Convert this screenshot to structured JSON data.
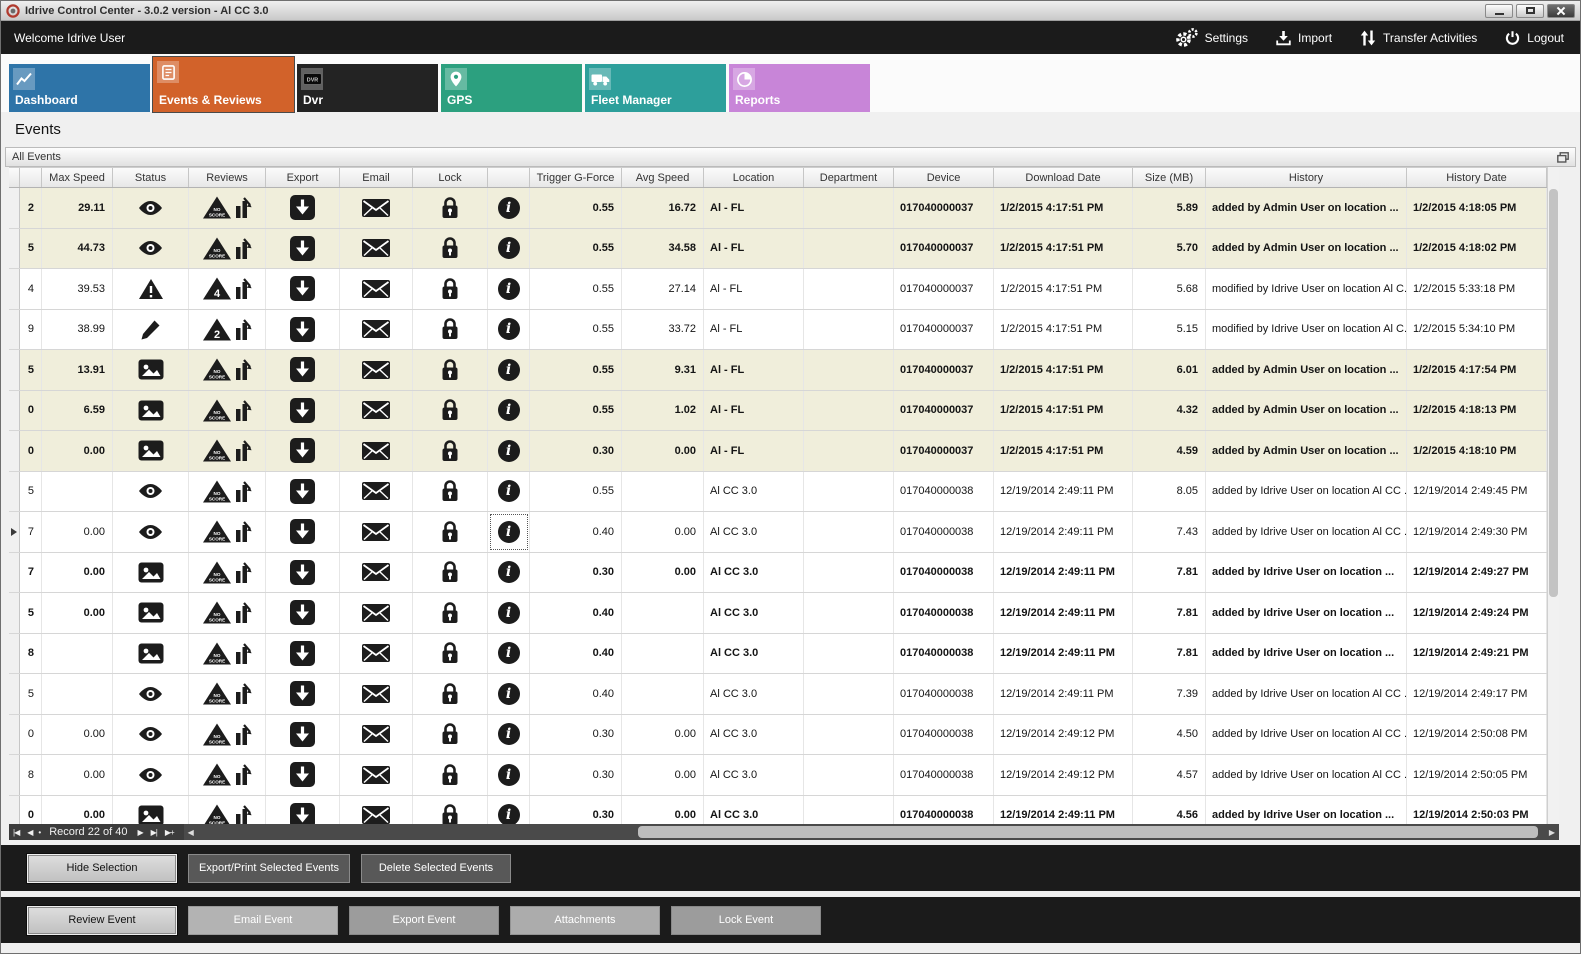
{
  "window": {
    "title": "Idrive Control Center - 3.0.2 version - Al CC 3.0"
  },
  "menubar": {
    "welcome": "Welcome Idrive User",
    "items": [
      {
        "label": "Settings",
        "icon": "gear"
      },
      {
        "label": "Import",
        "icon": "import"
      },
      {
        "label": "Transfer Activities",
        "icon": "transfer"
      },
      {
        "label": "Logout",
        "icon": "power"
      }
    ]
  },
  "tabs": [
    {
      "label": "Dashboard",
      "icon": "chart-line",
      "color": "#2e74a8",
      "selected": false
    },
    {
      "label": "Events & Reviews",
      "icon": "events",
      "color": "#d2622a",
      "selected": true
    },
    {
      "label": "Dvr",
      "icon": "dvr",
      "color": "#232323",
      "selected": false
    },
    {
      "label": "GPS",
      "icon": "pin",
      "color": "#2ca07f",
      "selected": false
    },
    {
      "label": "Fleet Manager",
      "icon": "truck",
      "color": "#2d9f9b",
      "selected": false
    },
    {
      "label": "Reports",
      "icon": "pie",
      "color": "#c885d8",
      "selected": false
    }
  ],
  "page_title": "Events",
  "panel_title": "All Events",
  "colors": {
    "unread_row_bg": "#f0eedb",
    "dark_bar": "#1b1b1b"
  },
  "table": {
    "columns": [
      "",
      "",
      "Max Speed",
      "Status",
      "Reviews",
      "Export",
      "Email",
      "Lock",
      "",
      "Trigger G-Force",
      "Avg Speed",
      "Location",
      "Department",
      "Device",
      "Download Date",
      "Size (MB)",
      "History",
      "History Date"
    ],
    "rows": [
      {
        "partial": "2",
        "max_speed": "29.11",
        "status": "eye",
        "score": "NO SCORE",
        "trigger_g": "0.55",
        "avg_speed": "16.72",
        "location": "Al - FL",
        "department": "",
        "device": "017040000037",
        "download_date": "1/2/2015 4:17:51 PM",
        "size_mb": "5.89",
        "history": "added by Admin User on location ...",
        "history_date": "1/2/2015 4:18:05 PM",
        "bold": true,
        "beige": true,
        "selected": false
      },
      {
        "partial": "5",
        "max_speed": "44.73",
        "status": "eye",
        "score": "NO SCORE",
        "trigger_g": "0.55",
        "avg_speed": "34.58",
        "location": "Al - FL",
        "department": "",
        "device": "017040000037",
        "download_date": "1/2/2015 4:17:51 PM",
        "size_mb": "5.70",
        "history": "added by Admin User on location ...",
        "history_date": "1/2/2015 4:18:02 PM",
        "bold": true,
        "beige": true,
        "selected": false
      },
      {
        "partial": "4",
        "max_speed": "39.53",
        "status": "warning",
        "score": "4",
        "trigger_g": "0.55",
        "avg_speed": "27.14",
        "location": "Al - FL",
        "department": "",
        "device": "017040000037",
        "download_date": "1/2/2015 4:17:51 PM",
        "size_mb": "5.68",
        "history": "modified by Idrive User on location Al C...",
        "history_date": "1/2/2015 5:33:18 PM",
        "bold": false,
        "beige": false,
        "selected": false
      },
      {
        "partial": "9",
        "max_speed": "38.99",
        "status": "pencil",
        "score": "2",
        "trigger_g": "0.55",
        "avg_speed": "33.72",
        "location": "Al - FL",
        "department": "",
        "device": "017040000037",
        "download_date": "1/2/2015 4:17:51 PM",
        "size_mb": "5.15",
        "history": "modified by Idrive User on location Al C...",
        "history_date": "1/2/2015 5:34:10 PM",
        "bold": false,
        "beige": false,
        "selected": false
      },
      {
        "partial": "5",
        "max_speed": "13.91",
        "status": "image",
        "score": "NO SCORE",
        "trigger_g": "0.55",
        "avg_speed": "9.31",
        "location": "Al - FL",
        "department": "",
        "device": "017040000037",
        "download_date": "1/2/2015 4:17:51 PM",
        "size_mb": "6.01",
        "history": "added by Admin User on location ...",
        "history_date": "1/2/2015 4:17:54 PM",
        "bold": true,
        "beige": true,
        "selected": false
      },
      {
        "partial": "0",
        "max_speed": "6.59",
        "status": "image",
        "score": "NO SCORE",
        "trigger_g": "0.55",
        "avg_speed": "1.02",
        "location": "Al - FL",
        "department": "",
        "device": "017040000037",
        "download_date": "1/2/2015 4:17:51 PM",
        "size_mb": "4.32",
        "history": "added by Admin User on location ...",
        "history_date": "1/2/2015 4:18:13 PM",
        "bold": true,
        "beige": true,
        "selected": false
      },
      {
        "partial": "0",
        "max_speed": "0.00",
        "status": "image",
        "score": "NO SCORE",
        "trigger_g": "0.30",
        "avg_speed": "0.00",
        "location": "Al - FL",
        "department": "",
        "device": "017040000037",
        "download_date": "1/2/2015 4:17:51 PM",
        "size_mb": "4.59",
        "history": "added by Admin User on location ...",
        "history_date": "1/2/2015 4:18:10 PM",
        "bold": true,
        "beige": true,
        "selected": false
      },
      {
        "partial": "5",
        "max_speed": "",
        "status": "eye",
        "score": "NO SCORE",
        "trigger_g": "0.55",
        "avg_speed": "",
        "location": "Al CC 3.0",
        "department": "",
        "device": "017040000038",
        "download_date": "12/19/2014 2:49:11 PM",
        "size_mb": "8.05",
        "history": "added by Idrive User on location Al CC ...",
        "history_date": "12/19/2014 2:49:45 PM",
        "bold": false,
        "beige": false,
        "selected": false
      },
      {
        "partial": "7",
        "max_speed": "0.00",
        "status": "eye",
        "score": "NO SCORE",
        "trigger_g": "0.40",
        "avg_speed": "0.00",
        "location": "Al CC 3.0",
        "department": "",
        "device": "017040000038",
        "download_date": "12/19/2014 2:49:11 PM",
        "size_mb": "7.43",
        "history": "added by Idrive User on location Al CC ...",
        "history_date": "12/19/2014 2:49:30 PM",
        "bold": false,
        "beige": false,
        "selected": true
      },
      {
        "partial": "7",
        "max_speed": "0.00",
        "status": "image",
        "score": "NO SCORE",
        "trigger_g": "0.30",
        "avg_speed": "0.00",
        "location": "Al CC 3.0",
        "department": "",
        "device": "017040000038",
        "download_date": "12/19/2014 2:49:11 PM",
        "size_mb": "7.81",
        "history": "added by Idrive User on location ...",
        "history_date": "12/19/2014 2:49:27 PM",
        "bold": true,
        "beige": false,
        "selected": false
      },
      {
        "partial": "5",
        "max_speed": "0.00",
        "status": "image",
        "score": "NO SCORE",
        "trigger_g": "0.40",
        "avg_speed": "",
        "location": "Al CC 3.0",
        "department": "",
        "device": "017040000038",
        "download_date": "12/19/2014 2:49:11 PM",
        "size_mb": "7.81",
        "history": "added by Idrive User on location ...",
        "history_date": "12/19/2014 2:49:24 PM",
        "bold": true,
        "beige": false,
        "selected": false
      },
      {
        "partial": "8",
        "max_speed": "",
        "status": "image",
        "score": "NO SCORE",
        "trigger_g": "0.40",
        "avg_speed": "",
        "location": "Al CC 3.0",
        "department": "",
        "device": "017040000038",
        "download_date": "12/19/2014 2:49:11 PM",
        "size_mb": "7.81",
        "history": "added by Idrive User on location ...",
        "history_date": "12/19/2014 2:49:21 PM",
        "bold": true,
        "beige": false,
        "selected": false
      },
      {
        "partial": "5",
        "max_speed": "",
        "status": "eye",
        "score": "NO SCORE",
        "trigger_g": "0.40",
        "avg_speed": "",
        "location": "Al CC 3.0",
        "department": "",
        "device": "017040000038",
        "download_date": "12/19/2014 2:49:11 PM",
        "size_mb": "7.39",
        "history": "added by Idrive User on location Al CC ...",
        "history_date": "12/19/2014 2:49:17 PM",
        "bold": false,
        "beige": false,
        "selected": false
      },
      {
        "partial": "0",
        "max_speed": "0.00",
        "status": "eye",
        "score": "NO SCORE",
        "trigger_g": "0.30",
        "avg_speed": "0.00",
        "location": "Al CC 3.0",
        "department": "",
        "device": "017040000038",
        "download_date": "12/19/2014 2:49:12 PM",
        "size_mb": "4.50",
        "history": "added by Idrive User on location Al CC ...",
        "history_date": "12/19/2014 2:50:08 PM",
        "bold": false,
        "beige": false,
        "selected": false
      },
      {
        "partial": "8",
        "max_speed": "0.00",
        "status": "eye",
        "score": "NO SCORE",
        "trigger_g": "0.30",
        "avg_speed": "0.00",
        "location": "Al CC 3.0",
        "department": "",
        "device": "017040000038",
        "download_date": "12/19/2014 2:49:12 PM",
        "size_mb": "4.57",
        "history": "added by Idrive User on location Al CC ...",
        "history_date": "12/19/2014 2:50:05 PM",
        "bold": false,
        "beige": false,
        "selected": false
      },
      {
        "partial": "0",
        "max_speed": "0.00",
        "status": "image",
        "score": "NO SCORE",
        "trigger_g": "0.30",
        "avg_speed": "0.00",
        "location": "Al CC 3.0",
        "department": "",
        "device": "017040000038",
        "download_date": "12/19/2014 2:49:11 PM",
        "size_mb": "4.56",
        "history": "added by Idrive User on location ...",
        "history_date": "12/19/2014 2:50:03 PM",
        "bold": true,
        "beige": false,
        "selected": false
      }
    ]
  },
  "navigator": {
    "record_text": "Record 22 of 40"
  },
  "action_bar1": {
    "buttons": [
      "Hide Selection",
      "Export/Print Selected Events",
      "Delete Selected  Events"
    ]
  },
  "action_bar2": {
    "buttons": [
      "Review Event",
      "Email Event",
      "Export Event",
      "Attachments",
      "Lock Event"
    ]
  }
}
